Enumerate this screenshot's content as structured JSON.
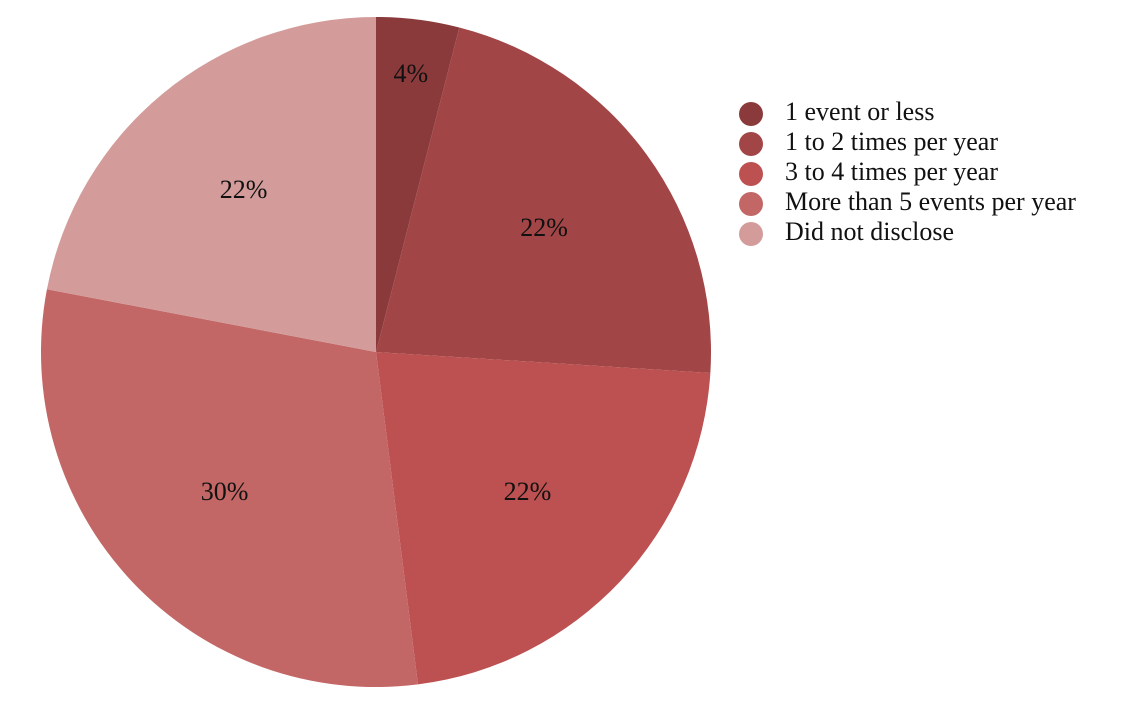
{
  "chart_data": {
    "type": "pie",
    "start_angle": "12 o'clock",
    "direction": "clockwise",
    "legend_position": "right",
    "slices": [
      {
        "label": "1 event or less",
        "value": 4,
        "display": "4%",
        "color": "#8b3a3c"
      },
      {
        "label": "1 to 2 times per year",
        "value": 22,
        "display": "22%",
        "color": "#a24546"
      },
      {
        "label": "3 to 4 times per year",
        "value": 22,
        "display": "22%",
        "color": "#bd5050"
      },
      {
        "label": "More than 5 events per year",
        "value": 30,
        "display": "30%",
        "color": "#c26766"
      },
      {
        "label": "Did not disclose",
        "value": 22,
        "display": "22%",
        "color": "#d39c9b"
      }
    ]
  }
}
